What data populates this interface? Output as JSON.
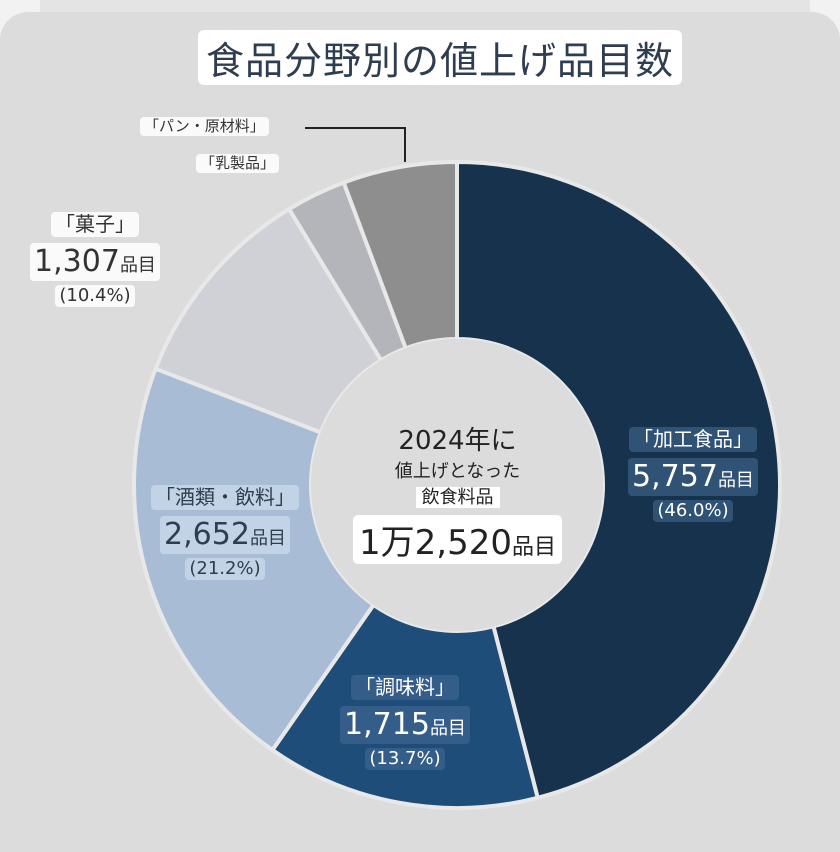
{
  "title": "食品分野別の値上げ品目数",
  "center": {
    "line1": "2024年に",
    "line2": "値上げとなった",
    "line3": "飲食料品",
    "total_prefix": "1万2,520",
    "total_unit": "品目"
  },
  "chart_data": {
    "type": "pie",
    "title": "食品分野別の値上げ品目数",
    "total": 12520,
    "unit": "品目",
    "slices": [
      {
        "label": "「加工食品」",
        "value": 5757,
        "value_text": "5,757",
        "pct_text": "(46.0%)",
        "color": "#17324d"
      },
      {
        "label": "「調味料」",
        "value": 1715,
        "value_text": "1,715",
        "pct_text": "(13.7%)",
        "color": "#1f4d7a"
      },
      {
        "label": "「酒類・飲料」",
        "value": 2652,
        "value_text": "2,652",
        "pct_text": "(21.2%)",
        "color": "#a8bdd5"
      },
      {
        "label": "「菓子」",
        "value": 1307,
        "value_text": "1,307",
        "pct_text": "(10.4%)",
        "color": "#cfd1d6"
      },
      {
        "label": "「乳製品」",
        "value": 375,
        "color": "#b3b5ba"
      },
      {
        "label": "「パン・原材料」",
        "value": 714,
        "color": "#8e8e8e"
      }
    ]
  }
}
